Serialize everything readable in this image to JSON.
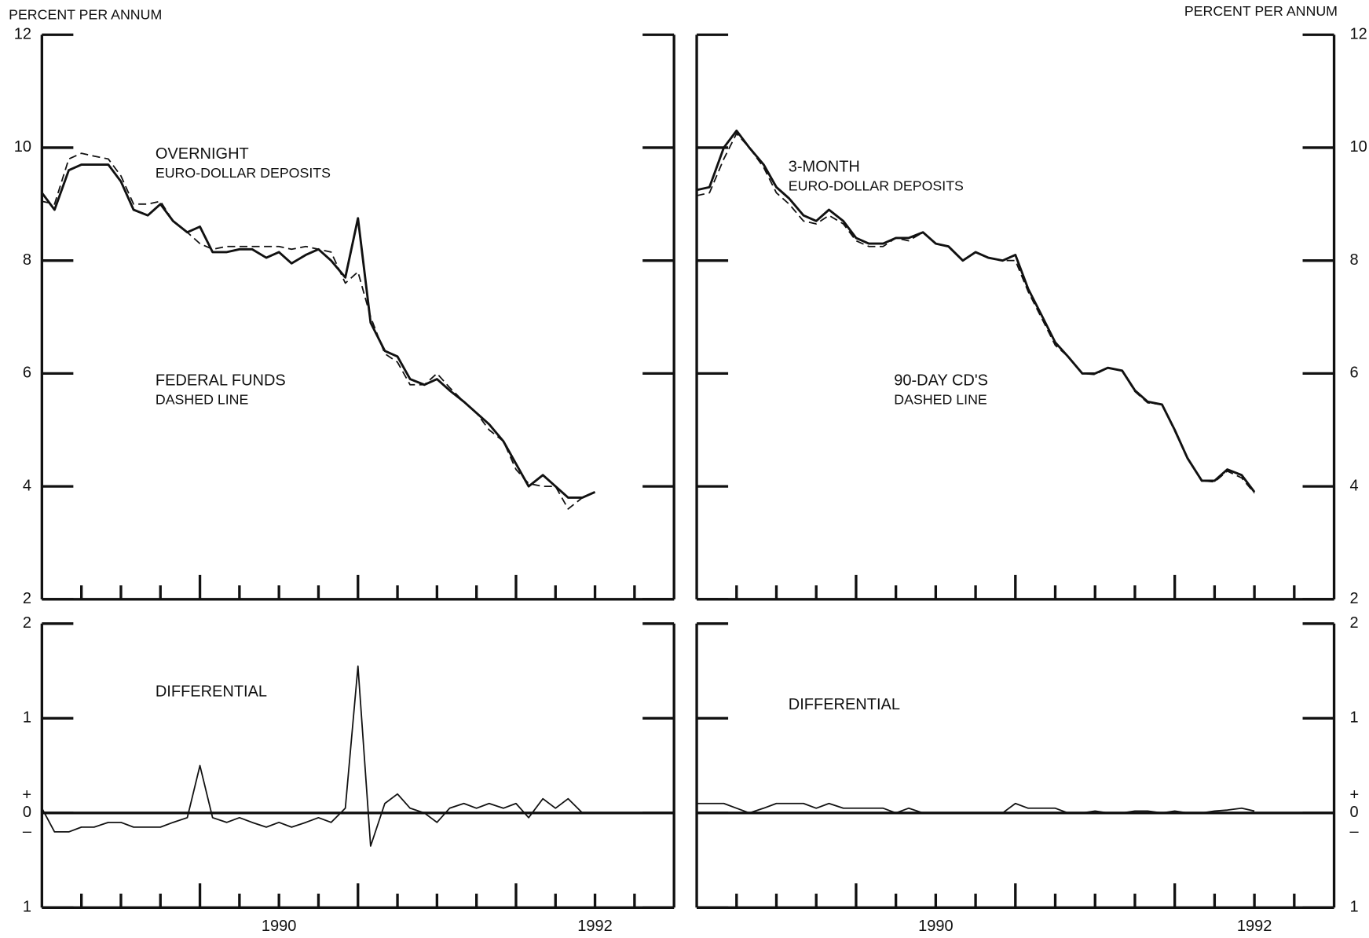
{
  "chart_data": [
    {
      "type": "line",
      "y_label": "PERCENT PER ANNUM",
      "annotations": [
        "OVERNIGHT",
        "EURO-DOLLAR DEPOSITS",
        "FEDERAL FUNDS",
        "DASHED LINE"
      ],
      "xlim": [
        1988.5,
        1992.5
      ],
      "minor_xticks": [
        1988.75,
        1989,
        1989.25,
        1989.5,
        1989.75,
        1990,
        1990.25,
        1990.5,
        1990.75,
        1991,
        1991.25,
        1991.5,
        1991.75,
        1992,
        1992.25
      ],
      "ylim": [
        2,
        12
      ],
      "yticks": [
        2,
        4,
        6,
        8,
        10,
        12
      ],
      "x": [
        1988.5,
        1988.58,
        1988.67,
        1988.75,
        1988.83,
        1988.92,
        1989,
        1989.08,
        1989.17,
        1989.25,
        1989.33,
        1989.42,
        1989.5,
        1989.58,
        1989.67,
        1989.75,
        1989.83,
        1989.92,
        1990,
        1990.08,
        1990.17,
        1990.25,
        1990.33,
        1990.42,
        1990.5,
        1990.58,
        1990.67,
        1990.75,
        1990.83,
        1990.92,
        1991,
        1991.08,
        1991.17,
        1991.25,
        1991.33,
        1991.42,
        1991.5,
        1991.58,
        1991.67,
        1991.75,
        1991.83,
        1991.92,
        1992
      ],
      "series": [
        {
          "color": "#111111",
          "dashed": false,
          "values": [
            9.2,
            8.9,
            9.6,
            9.7,
            9.7,
            9.7,
            9.4,
            8.9,
            8.8,
            9.0,
            8.7,
            8.5,
            8.6,
            8.15,
            8.15,
            8.2,
            8.2,
            8.05,
            8.15,
            7.95,
            8.1,
            8.2,
            8.0,
            7.7,
            8.75,
            6.9,
            6.4,
            6.3,
            5.9,
            5.8,
            5.9,
            5.7,
            5.5,
            5.3,
            5.1,
            4.8,
            4.4,
            4.0,
            4.2,
            4.0,
            3.8,
            3.8,
            3.9
          ]
        },
        {
          "color": "#111111",
          "dashed": true,
          "values": [
            9.05,
            9.0,
            9.8,
            9.9,
            9.85,
            9.8,
            9.5,
            9.0,
            9.0,
            9.05,
            8.7,
            8.5,
            8.3,
            8.2,
            8.25,
            8.25,
            8.25,
            8.25,
            8.25,
            8.2,
            8.25,
            8.2,
            8.15,
            7.6,
            7.8,
            7.0,
            6.35,
            6.2,
            5.8,
            5.8,
            6.0,
            5.75,
            5.5,
            5.3,
            5.0,
            4.8,
            4.3,
            4.05,
            4.0,
            4.0,
            3.6,
            3.8,
            3.9
          ]
        }
      ]
    },
    {
      "type": "line",
      "y_label": "PERCENT PER ANNUM",
      "annotations": [
        "3-MONTH",
        "EURO-DOLLAR DEPOSITS",
        "90-DAY CD'S",
        "DASHED LINE"
      ],
      "xlim": [
        1988.5,
        1992.5
      ],
      "minor_xticks": [
        1988.75,
        1989,
        1989.25,
        1989.5,
        1989.75,
        1990,
        1990.25,
        1990.5,
        1990.75,
        1991,
        1991.25,
        1991.5,
        1991.75,
        1992,
        1992.25
      ],
      "ylim": [
        2,
        12
      ],
      "yticks": [
        2,
        4,
        6,
        8,
        10,
        12
      ],
      "x": [
        1988.5,
        1988.58,
        1988.67,
        1988.75,
        1988.83,
        1988.92,
        1989,
        1989.08,
        1989.17,
        1989.25,
        1989.33,
        1989.42,
        1989.5,
        1989.58,
        1989.67,
        1989.75,
        1989.83,
        1989.92,
        1990,
        1990.08,
        1990.17,
        1990.25,
        1990.33,
        1990.42,
        1990.5,
        1990.58,
        1990.67,
        1990.75,
        1990.83,
        1990.92,
        1991,
        1991.08,
        1991.17,
        1991.25,
        1991.33,
        1991.42,
        1991.5,
        1991.58,
        1991.67,
        1991.75,
        1991.83,
        1991.92,
        1992
      ],
      "series": [
        {
          "color": "#111111",
          "dashed": false,
          "values": [
            9.25,
            9.3,
            10.0,
            10.3,
            10.0,
            9.7,
            9.3,
            9.1,
            8.8,
            8.7,
            8.9,
            8.7,
            8.4,
            8.3,
            8.3,
            8.4,
            8.4,
            8.5,
            8.3,
            8.25,
            8.0,
            8.15,
            8.05,
            8.0,
            8.1,
            7.5,
            7.0,
            6.55,
            6.3,
            6.0,
            6.0,
            6.1,
            6.05,
            5.7,
            5.5,
            5.45,
            5.0,
            4.5,
            4.1,
            4.1,
            4.3,
            4.2,
            3.9
          ]
        },
        {
          "color": "#111111",
          "dashed": true,
          "values": [
            9.15,
            9.2,
            9.8,
            10.25,
            10.0,
            9.65,
            9.2,
            9.0,
            8.7,
            8.65,
            8.8,
            8.65,
            8.35,
            8.25,
            8.25,
            8.4,
            8.35,
            8.5,
            8.3,
            8.25,
            8.0,
            8.15,
            8.05,
            8.0,
            8.0,
            7.45,
            6.95,
            6.5,
            6.3,
            6.0,
            5.98,
            6.1,
            6.05,
            5.68,
            5.48,
            5.45,
            4.98,
            4.5,
            4.1,
            4.08,
            4.27,
            4.15,
            3.88
          ]
        }
      ]
    },
    {
      "type": "line",
      "annotations": [
        "DIFFERENTIAL"
      ],
      "xlim": [
        1988.5,
        1992.5
      ],
      "xticks": [
        1990,
        1992
      ],
      "minor_xticks": [
        1988.75,
        1989,
        1989.25,
        1989.5,
        1989.75,
        1990,
        1990.25,
        1990.5,
        1990.75,
        1991,
        1991.25,
        1991.5,
        1991.75,
        1992,
        1992.25
      ],
      "ylim": [
        -1,
        2
      ],
      "yticks": [
        {
          "value": -1,
          "label": "1"
        },
        0,
        1,
        2
      ],
      "zero_signs": [
        "+",
        "–"
      ],
      "x": [
        1988.5,
        1988.58,
        1988.67,
        1988.75,
        1988.83,
        1988.92,
        1989,
        1989.08,
        1989.17,
        1989.25,
        1989.33,
        1989.42,
        1989.5,
        1989.58,
        1989.67,
        1989.75,
        1989.83,
        1989.92,
        1990,
        1990.08,
        1990.17,
        1990.25,
        1990.33,
        1990.42,
        1990.5,
        1990.58,
        1990.67,
        1990.75,
        1990.83,
        1990.92,
        1991,
        1991.08,
        1991.17,
        1991.25,
        1991.33,
        1991.42,
        1991.5,
        1991.58,
        1991.67,
        1991.75,
        1991.83,
        1991.92,
        1992
      ],
      "series": [
        {
          "color": "#111111",
          "dashed": false,
          "values": [
            0.05,
            -0.2,
            -0.2,
            -0.15,
            -0.15,
            -0.1,
            -0.1,
            -0.15,
            -0.15,
            -0.15,
            -0.1,
            -0.05,
            0.5,
            -0.05,
            -0.1,
            -0.05,
            -0.1,
            -0.15,
            -0.1,
            -0.15,
            -0.1,
            -0.05,
            -0.1,
            0.05,
            1.55,
            -0.35,
            0.1,
            0.2,
            0.05,
            0.0,
            -0.1,
            0.05,
            0.1,
            0.05,
            0.1,
            0.05,
            0.1,
            -0.05,
            0.15,
            0.05,
            0.15,
            0.0,
            0.0
          ]
        }
      ]
    },
    {
      "type": "line",
      "annotations": [
        "DIFFERENTIAL"
      ],
      "xlim": [
        1988.5,
        1992.5
      ],
      "xticks": [
        1990,
        1992
      ],
      "minor_xticks": [
        1988.75,
        1989,
        1989.25,
        1989.5,
        1989.75,
        1990,
        1990.25,
        1990.5,
        1990.75,
        1991,
        1991.25,
        1991.5,
        1991.75,
        1992,
        1992.25
      ],
      "ylim": [
        -1,
        2
      ],
      "yticks": [
        {
          "value": -1,
          "label": "1"
        },
        0,
        1,
        2
      ],
      "zero_signs": [
        "+",
        "–"
      ],
      "x": [
        1988.5,
        1988.58,
        1988.67,
        1988.75,
        1988.83,
        1988.92,
        1989,
        1989.08,
        1989.17,
        1989.25,
        1989.33,
        1989.42,
        1989.5,
        1989.58,
        1989.67,
        1989.75,
        1989.83,
        1989.92,
        1990,
        1990.08,
        1990.17,
        1990.25,
        1990.33,
        1990.42,
        1990.5,
        1990.58,
        1990.67,
        1990.75,
        1990.83,
        1990.92,
        1991,
        1991.08,
        1991.17,
        1991.25,
        1991.33,
        1991.42,
        1991.5,
        1991.58,
        1991.67,
        1991.75,
        1991.83,
        1991.92,
        1992
      ],
      "series": [
        {
          "color": "#111111",
          "dashed": false,
          "values": [
            0.1,
            0.1,
            0.1,
            0.05,
            0,
            0.05,
            0.1,
            0.1,
            0.1,
            0.05,
            0.1,
            0.05,
            0.05,
            0.05,
            0.05,
            0,
            0.05,
            0,
            0,
            0,
            0,
            0,
            0,
            0,
            0.1,
            0.05,
            0.05,
            0.05,
            0,
            0,
            0.02,
            0,
            0,
            0.02,
            0.02,
            0,
            0.02,
            0,
            0,
            0.02,
            0.03,
            0.05,
            0.02
          ]
        }
      ]
    }
  ]
}
